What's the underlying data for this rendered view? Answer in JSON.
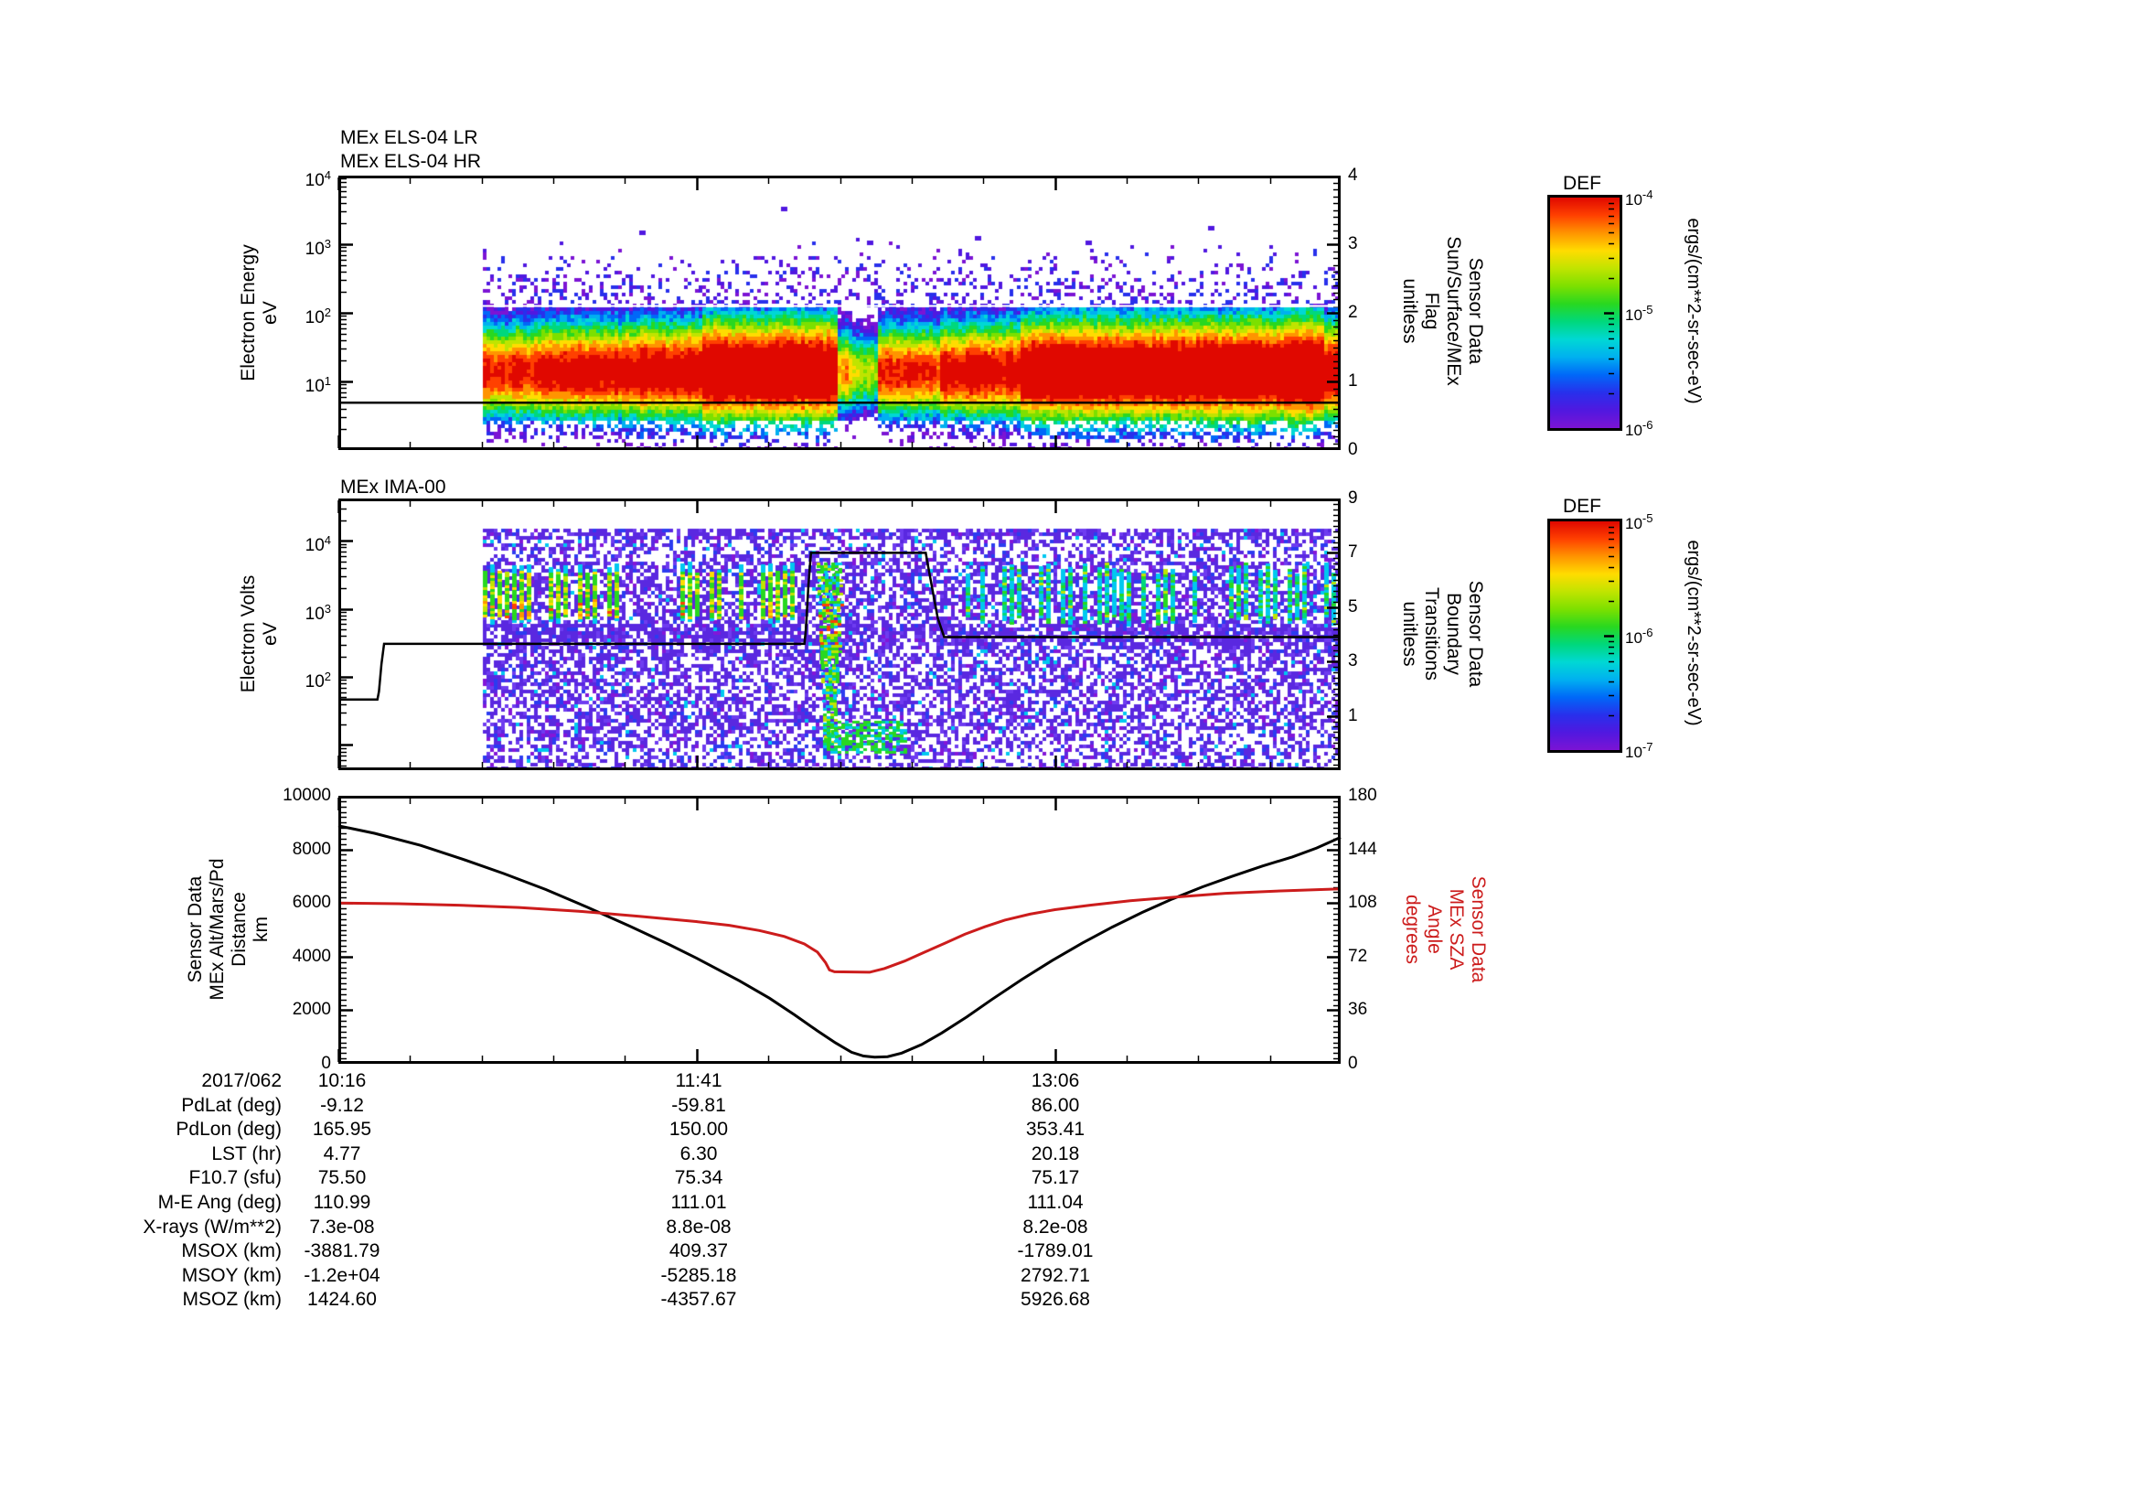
{
  "colors": {
    "foreground": "#000000",
    "sza_red": "#cc1c1c",
    "palette_high_to_low": [
      "#e00800",
      "#ff4000",
      "#ff9400",
      "#ffdc00",
      "#c0e400",
      "#7ce000",
      "#28d820",
      "#00d87c",
      "#00d8d4",
      "#00b0f0",
      "#0068f8",
      "#2830ec",
      "#5018e0",
      "#7c14d4"
    ]
  },
  "time_axis": {
    "major_fracs": [
      0.0,
      0.3575,
      0.715
    ],
    "minor_step_frac": 0.0715,
    "start_label": "10:16",
    "mid_label": "11:41",
    "end_label": "13:06",
    "date_label": "2017/062"
  },
  "chart_data": [
    {
      "id": "els",
      "type": "heatmap",
      "titles": [
        "MEx ELS-04 LR",
        "MEx ELS-04 HR"
      ],
      "ylabel": [
        "Electron Energy",
        "eV"
      ],
      "yscale": "log",
      "ylim_exp": [
        0,
        4
      ],
      "ytick_exps": [
        1,
        2,
        3,
        4
      ],
      "right_axis": {
        "label": [
          "Sensor Data",
          "Sun/Surface/MEx",
          "Flag",
          "unitless"
        ],
        "lim": [
          0,
          4
        ],
        "ticks": [
          0,
          1,
          2,
          3,
          4
        ],
        "minor_step": 0.1
      },
      "data_start_frac": 0.144,
      "band": {
        "center_exp": 1.15,
        "intensity_profile": [
          [
            0.144,
            0.78
          ],
          [
            0.2,
            0.84
          ],
          [
            0.3,
            0.9
          ],
          [
            0.363,
            1.02
          ],
          [
            0.497,
            0.6
          ],
          [
            0.512,
            0.48
          ],
          [
            0.535,
            0.74
          ],
          [
            0.6,
            0.84
          ],
          [
            0.68,
            1.0
          ],
          [
            0.95,
            1.06
          ],
          [
            0.98,
            0.92
          ]
        ],
        "speckle_top_exp": 3.1,
        "speckle_floor_exp": 2.12
      },
      "dots": [
        [
          0.3,
          3.2
        ],
        [
          0.442,
          3.55
        ],
        [
          0.527,
          3.05
        ],
        [
          0.635,
          3.12
        ],
        [
          0.745,
          3.05
        ],
        [
          0.868,
          3.27
        ]
      ],
      "overlays": [
        {
          "name": "flag-line",
          "color": "#000000",
          "width": 2.5,
          "axis": "right",
          "points": [
            [
              0,
              0.69
            ],
            [
              1,
              0.69
            ]
          ]
        },
        {
          "name": "data-top-white-line",
          "color": "#ffffff",
          "width": 2,
          "axis": "right",
          "points": [
            [
              0.144,
              2.1
            ],
            [
              1,
              2.1
            ]
          ]
        }
      ]
    },
    {
      "id": "ima",
      "type": "heatmap",
      "titles": [
        "MEx IMA-00"
      ],
      "ylabel": [
        "Electron Volts",
        "eV"
      ],
      "yscale": "log",
      "ylim_exp": [
        0.63,
        4.62
      ],
      "ytick_exps": [
        2,
        3,
        4
      ],
      "right_axis": {
        "label": [
          "Sensor Data",
          "Boundary",
          "Transitions",
          "unitless"
        ],
        "lim": [
          -1,
          9
        ],
        "ticks": [
          1,
          3,
          5,
          7,
          9
        ],
        "minor_step": 0.2
      },
      "data_start_frac": 0.144,
      "noise": {
        "purple_density": 0.44,
        "streak_band_exps": [
          2.78,
          3.7
        ],
        "dense_band_exps": [
          2.5,
          2.82
        ],
        "left_region_end_frac": 0.472,
        "right_region_start_frac": 0.615,
        "descend_fracs": [
          0.477,
          0.503
        ],
        "descend_exps": [
          3.68,
          1.06
        ],
        "blob_fracs": [
          0.484,
          0.566
        ],
        "blob_exps": [
          0.89,
          1.35
        ]
      },
      "overlays": [
        {
          "name": "boundary-transitions-line",
          "color": "#000000",
          "width": 2.5,
          "axis": "right",
          "points": [
            [
              0,
              1.6
            ],
            [
              0.039,
              1.6
            ],
            [
              0.0405,
              1.9
            ],
            [
              0.043,
              2.9
            ],
            [
              0.0456,
              3.65
            ],
            [
              0.465,
              3.65
            ],
            [
              0.4665,
              4.2
            ],
            [
              0.469,
              5.8
            ],
            [
              0.4715,
              7.0
            ],
            [
              0.586,
              7.0
            ],
            [
              0.588,
              6.6
            ],
            [
              0.598,
              4.6
            ],
            [
              0.6045,
              3.9
            ],
            [
              1,
              3.9
            ]
          ]
        }
      ]
    },
    {
      "id": "alt",
      "type": "line",
      "titles": [],
      "ylabel": [
        "Sensor Data",
        "MEx Alt/Mars/Pd",
        "Distance",
        "km"
      ],
      "yscale": "linear",
      "ylim": [
        0,
        10000
      ],
      "yticks": [
        0,
        2000,
        4000,
        6000,
        8000,
        10000
      ],
      "ytick_minor_step": 200,
      "right_axis": {
        "label": [
          "Sensor Data",
          "MEx SZA",
          "Angle",
          "degrees"
        ],
        "label_color": "#cc1c1c",
        "lim": [
          0,
          180
        ],
        "ticks": [
          0,
          36,
          72,
          108,
          144,
          180
        ],
        "minor_step": 3.6
      },
      "series": [
        {
          "name": "mex-altitude-km",
          "color": "#000000",
          "axis": "left",
          "width": 3,
          "points": [
            [
              0,
              8880
            ],
            [
              0.036,
              8600
            ],
            [
              0.082,
              8150
            ],
            [
              0.123,
              7650
            ],
            [
              0.165,
              7100
            ],
            [
              0.207,
              6500
            ],
            [
              0.248,
              5850
            ],
            [
              0.29,
              5150
            ],
            [
              0.33,
              4450
            ],
            [
              0.357,
              3950
            ],
            [
              0.4,
              3100
            ],
            [
              0.43,
              2450
            ],
            [
              0.455,
              1830
            ],
            [
              0.478,
              1230
            ],
            [
              0.496,
              780
            ],
            [
              0.512,
              430
            ],
            [
              0.524,
              290
            ],
            [
              0.535,
              245
            ],
            [
              0.548,
              265
            ],
            [
              0.562,
              400
            ],
            [
              0.582,
              720
            ],
            [
              0.602,
              1150
            ],
            [
              0.627,
              1750
            ],
            [
              0.652,
              2400
            ],
            [
              0.682,
              3150
            ],
            [
              0.712,
              3850
            ],
            [
              0.742,
              4500
            ],
            [
              0.772,
              5100
            ],
            [
              0.802,
              5650
            ],
            [
              0.832,
              6150
            ],
            [
              0.862,
              6600
            ],
            [
              0.892,
              7000
            ],
            [
              0.922,
              7380
            ],
            [
              0.952,
              7720
            ],
            [
              0.976,
              8050
            ],
            [
              1,
              8450
            ]
          ]
        },
        {
          "name": "mex-sza-degrees",
          "color": "#cc1c1c",
          "axis": "right",
          "width": 3,
          "points": [
            [
              0,
              108
            ],
            [
              0.06,
              107.5
            ],
            [
              0.12,
              106.5
            ],
            [
              0.18,
              105
            ],
            [
              0.24,
              102.5
            ],
            [
              0.3,
              99
            ],
            [
              0.357,
              95.5
            ],
            [
              0.39,
              93
            ],
            [
              0.42,
              89.5
            ],
            [
              0.445,
              85.5
            ],
            [
              0.465,
              80.5
            ],
            [
              0.478,
              75
            ],
            [
              0.486,
              68
            ],
            [
              0.49,
              63
            ],
            [
              0.495,
              61.8
            ],
            [
              0.53,
              61.5
            ],
            [
              0.545,
              64
            ],
            [
              0.565,
              69
            ],
            [
              0.585,
              75
            ],
            [
              0.605,
              81
            ],
            [
              0.625,
              87
            ],
            [
              0.645,
              92
            ],
            [
              0.665,
              96.5
            ],
            [
              0.69,
              100.5
            ],
            [
              0.715,
              103.5
            ],
            [
              0.75,
              106.5
            ],
            [
              0.79,
              109.5
            ],
            [
              0.835,
              112
            ],
            [
              0.885,
              114.5
            ],
            [
              0.935,
              116
            ],
            [
              1,
              117.5
            ]
          ]
        }
      ]
    }
  ],
  "colorbars": [
    {
      "title": "DEF",
      "unit": "ergs/(cm**2-sr-sec-eV)",
      "tick_exps": [
        -4,
        -5,
        -6
      ],
      "lim_exps": [
        -4,
        -6
      ]
    },
    {
      "title": "DEF",
      "unit": "ergs/(cm**2-sr-sec-eV)",
      "tick_exps": [
        -5,
        -6,
        -7
      ],
      "lim_exps": [
        -5,
        -7
      ]
    }
  ],
  "table": {
    "rows": [
      {
        "label": "2017/062",
        "values": [
          "10:16",
          "11:41",
          "13:06"
        ]
      },
      {
        "label": "PdLat (deg)",
        "values": [
          "-9.12",
          "-59.81",
          "86.00"
        ]
      },
      {
        "label": "PdLon (deg)",
        "values": [
          "165.95",
          "150.00",
          "353.41"
        ]
      },
      {
        "label": "LST (hr)",
        "values": [
          "4.77",
          "6.30",
          "20.18"
        ]
      },
      {
        "label": "F10.7 (sfu)",
        "values": [
          "75.50",
          "75.34",
          "75.17"
        ]
      },
      {
        "label": "M-E Ang (deg)",
        "values": [
          "110.99",
          "111.01",
          "111.04"
        ]
      },
      {
        "label": "X-rays (W/m**2)",
        "values": [
          "7.3e-08",
          "8.8e-08",
          "8.2e-08"
        ]
      },
      {
        "label": "MSOX (km)",
        "values": [
          "-3881.79",
          "409.37",
          "-1789.01"
        ]
      },
      {
        "label": "MSOY (km)",
        "values": [
          "-1.2e+04",
          "-5285.18",
          "2792.71"
        ]
      },
      {
        "label": "MSOZ (km)",
        "values": [
          "1424.60",
          "-4357.67",
          "5926.68"
        ]
      }
    ]
  }
}
